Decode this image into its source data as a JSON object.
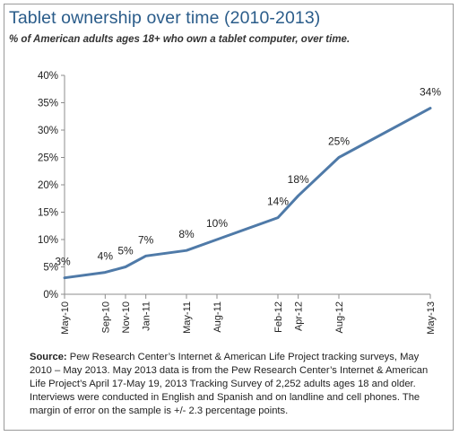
{
  "title": "Tablet ownership over time (2010-2013)",
  "subtitle": "% of American adults ages 18+ who own a tablet computer, over time.",
  "source": {
    "label": "Source:",
    "text": "Pew Research Center’s Internet & American Life Project tracking surveys, May 2010 – May 2013. May 2013 data is from the Pew Research Center’s Internet & American Life Project’s April 17-May 19, 2013 Tracking Survey of 2,252 adults ages 18 and older. Interviews were conducted in English and Spanish and on landline and cell phones. The margin of error on the sample is +/- 2.3 percentage points."
  },
  "chart_data": {
    "type": "line",
    "title": "Tablet ownership over time (2010-2013)",
    "xlabel": "",
    "ylabel": "",
    "ylim": [
      0,
      40
    ],
    "yticks": [
      0,
      5,
      10,
      15,
      20,
      25,
      30,
      35,
      40
    ],
    "ytick_suffix": "%",
    "grid": false,
    "legend": "none",
    "line_color": "#4f7aa8",
    "xticks": [
      "May-10",
      "Sep-10",
      "Nov-10",
      "Jan-11",
      "May-11",
      "Aug-11",
      "Feb-12",
      "Apr-12",
      "Aug-12",
      "May-13"
    ],
    "x": [
      "2010-05",
      "2010-09",
      "2010-11",
      "2011-01",
      "2011-05",
      "2011-08",
      "2012-02",
      "2012-04",
      "2012-08",
      "2013-05"
    ],
    "series": [
      {
        "values": [
          3,
          4,
          5,
          7,
          8,
          10,
          14,
          18,
          25,
          34
        ]
      }
    ],
    "data_labels": [
      "3%",
      "4%",
      "5%",
      "7%",
      "8%",
      "10%",
      "14%",
      "18%",
      "25%",
      "34%"
    ]
  }
}
